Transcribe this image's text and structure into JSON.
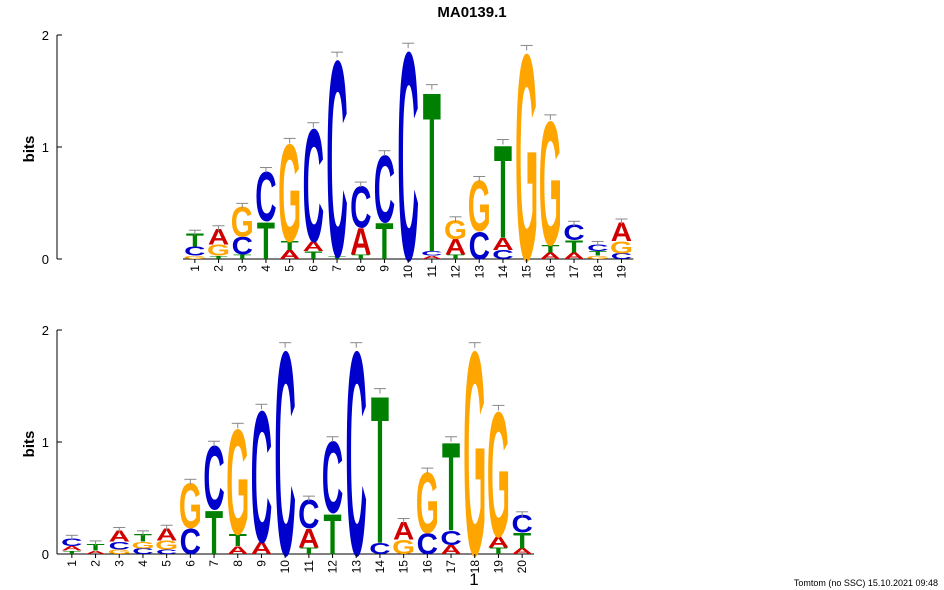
{
  "title": "MA0139.1",
  "footer": "Tomtom (no SSC) 15.10.2021 09:48",
  "offset_label": "1",
  "colors": {
    "A": "#d00000",
    "C": "#0000cc",
    "G": "#ffa500",
    "T": "#008000",
    "error_bar": "#888888"
  },
  "chart_data": [
    {
      "type": "sequence-logo",
      "ylabel": "bits",
      "ylim": [
        0,
        2
      ],
      "yticks": [
        "0",
        "1",
        "2"
      ],
      "positions": [
        "1",
        "2",
        "3",
        "4",
        "5",
        "6",
        "7",
        "8",
        "9",
        "10",
        "11",
        "12",
        "13",
        "14",
        "15",
        "16",
        "17",
        "18",
        "19"
      ],
      "columns": [
        [
          [
            "G",
            0.03
          ],
          [
            "C",
            0.08
          ],
          [
            "T",
            0.12
          ]
        ],
        [
          [
            "T",
            0.03
          ],
          [
            "G",
            0.1
          ],
          [
            "A",
            0.14
          ]
        ],
        [
          [
            "T",
            0.04
          ],
          [
            "C",
            0.16
          ],
          [
            "G",
            0.27
          ]
        ],
        [
          [
            "T",
            0.34
          ],
          [
            "C",
            0.45
          ]
        ],
        [
          [
            "A",
            0.08
          ],
          [
            "T",
            0.08
          ],
          [
            "G",
            0.89
          ]
        ],
        [
          [
            "T",
            0.07
          ],
          [
            "A",
            0.09
          ],
          [
            "C",
            1.03
          ]
        ],
        [
          [
            "T",
            0.03
          ],
          [
            "C",
            1.79
          ]
        ],
        [
          [
            "T",
            0.04
          ],
          [
            "A",
            0.24
          ],
          [
            "C",
            0.38
          ]
        ],
        [
          [
            "T",
            0.33
          ],
          [
            "C",
            0.61
          ]
        ],
        [
          [
            "C",
            1.9
          ]
        ],
        [
          [
            "A",
            0.03
          ],
          [
            "C",
            0.04
          ],
          [
            "T",
            1.46
          ]
        ],
        [
          [
            "T",
            0.04
          ],
          [
            "A",
            0.14
          ],
          [
            "G",
            0.17
          ]
        ],
        [
          [
            "C",
            0.25
          ],
          [
            "G",
            0.46
          ]
        ],
        [
          [
            "C",
            0.08
          ],
          [
            "A",
            0.11
          ],
          [
            "T",
            0.85
          ]
        ],
        [
          [
            "G",
            1.88
          ]
        ],
        [
          [
            "A",
            0.06
          ],
          [
            "T",
            0.07
          ],
          [
            "G",
            1.13
          ]
        ],
        [
          [
            "A",
            0.06
          ],
          [
            "T",
            0.11
          ],
          [
            "C",
            0.14
          ]
        ],
        [
          [
            "G",
            0.03
          ],
          [
            "T",
            0.04
          ],
          [
            "C",
            0.06
          ]
        ],
        [
          [
            "C",
            0.05
          ],
          [
            "G",
            0.11
          ],
          [
            "A",
            0.17
          ]
        ]
      ]
    },
    {
      "type": "sequence-logo",
      "ylabel": "bits",
      "ylim": [
        0,
        2
      ],
      "yticks": [
        "0",
        "1",
        "2"
      ],
      "positions": [
        "1",
        "2",
        "3",
        "4",
        "5",
        "6",
        "7",
        "8",
        "9",
        "10",
        "11",
        "12",
        "13",
        "14",
        "15",
        "16",
        "17",
        "18",
        "19",
        "20"
      ],
      "columns": [
        [
          [
            "T",
            0.03
          ],
          [
            "A",
            0.04
          ],
          [
            "C",
            0.07
          ]
        ],
        [
          [
            "A",
            0.03
          ],
          [
            "T",
            0.06
          ]
        ],
        [
          [
            "G",
            0.04
          ],
          [
            "C",
            0.07
          ],
          [
            "A",
            0.1
          ]
        ],
        [
          [
            "C",
            0.05
          ],
          [
            "G",
            0.06
          ],
          [
            "T",
            0.07
          ]
        ],
        [
          [
            "C",
            0.04
          ],
          [
            "G",
            0.08
          ],
          [
            "A",
            0.11
          ]
        ],
        [
          [
            "C",
            0.23
          ],
          [
            "G",
            0.41
          ]
        ],
        [
          [
            "T",
            0.4
          ],
          [
            "C",
            0.58
          ]
        ],
        [
          [
            "A",
            0.07
          ],
          [
            "T",
            0.11
          ],
          [
            "G",
            0.96
          ]
        ],
        [
          [
            "A",
            0.11
          ],
          [
            "C",
            1.2
          ]
        ],
        [
          [
            "C",
            1.86
          ]
        ],
        [
          [
            "T",
            0.06
          ],
          [
            "A",
            0.17
          ],
          [
            "C",
            0.26
          ]
        ],
        [
          [
            "T",
            0.37
          ],
          [
            "C",
            0.65
          ]
        ],
        [
          [
            "C",
            1.86
          ]
        ],
        [
          [
            "C",
            0.1
          ],
          [
            "T",
            1.35
          ]
        ],
        [
          [
            "G",
            0.13
          ],
          [
            "A",
            0.16
          ]
        ],
        [
          [
            "C",
            0.19
          ],
          [
            "G",
            0.55
          ]
        ],
        [
          [
            "A",
            0.08
          ],
          [
            "C",
            0.13
          ],
          [
            "T",
            0.81
          ]
        ],
        [
          [
            "G",
            1.86
          ]
        ],
        [
          [
            "T",
            0.06
          ],
          [
            "A",
            0.1
          ],
          [
            "G",
            1.14
          ]
        ],
        [
          [
            "A",
            0.05
          ],
          [
            "T",
            0.14
          ],
          [
            "C",
            0.16
          ]
        ]
      ]
    }
  ]
}
